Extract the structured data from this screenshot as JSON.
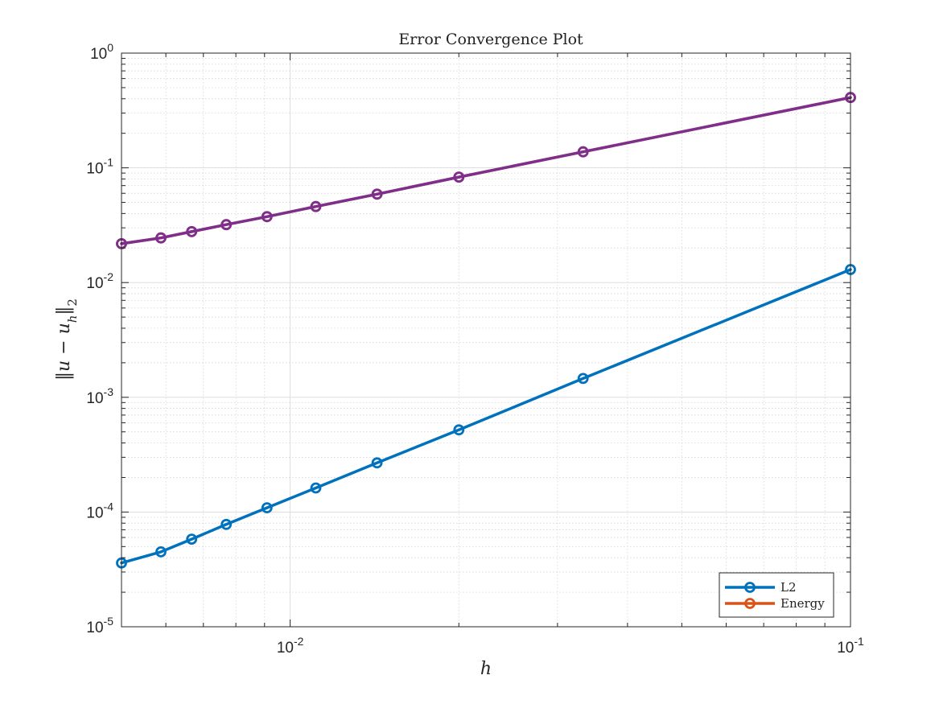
{
  "chart_data": {
    "type": "line",
    "title": "Error Convergence Plot",
    "xlabel": "h",
    "ylabel": "‖u − u_h‖_2",
    "xscale": "log",
    "yscale": "log",
    "xlim": [
      0.005,
      0.1
    ],
    "ylim": [
      1e-05,
      1
    ],
    "x_ticks": [
      {
        "value": 0.01,
        "base": "10",
        "exp": "-2"
      },
      {
        "value": 0.1,
        "base": "10",
        "exp": "-1"
      }
    ],
    "y_ticks": [
      {
        "value": 1e-05,
        "base": "10",
        "exp": "-5"
      },
      {
        "value": 0.0001,
        "base": "10",
        "exp": "-4"
      },
      {
        "value": 0.001,
        "base": "10",
        "exp": "-3"
      },
      {
        "value": 0.01,
        "base": "10",
        "exp": "-2"
      },
      {
        "value": 0.1,
        "base": "10",
        "exp": "-1"
      },
      {
        "value": 1,
        "base": "10",
        "exp": "0"
      }
    ],
    "grid": true,
    "minor_grid": true,
    "legend_position": "bottom-right",
    "series": [
      {
        "name": "L2",
        "color": "#0072BD",
        "marker": "circle",
        "x": [
          0.1,
          0.03333,
          0.02,
          0.01429,
          0.01111,
          0.00909,
          0.00769,
          0.00667,
          0.00588,
          0.005
        ],
        "y": [
          0.013,
          0.00146,
          0.00052,
          0.000268,
          0.000162,
          0.000109,
          7.8e-05,
          5.8e-05,
          4.5e-05,
          3.6e-05
        ]
      },
      {
        "name": "Energy",
        "color": "#D95319",
        "marker": "circle",
        "x": [
          0.1,
          0.03333,
          0.02,
          0.01429,
          0.01111,
          0.00909,
          0.00769,
          0.00667,
          0.00588,
          0.005
        ],
        "y": [
          0.41,
          0.138,
          0.083,
          0.059,
          0.046,
          0.0375,
          0.032,
          0.0278,
          0.0245,
          0.0218
        ]
      },
      {
        "name": "",
        "color": "#7E2F8E",
        "marker": "circle",
        "x": [
          0.1,
          0.03333,
          0.02,
          0.01429,
          0.01111,
          0.00909,
          0.00769,
          0.00667,
          0.00588,
          0.005
        ],
        "y": [
          0.41,
          0.138,
          0.083,
          0.059,
          0.046,
          0.0375,
          0.032,
          0.0278,
          0.0245,
          0.0218
        ]
      }
    ],
    "legend_entries": [
      "L2",
      "Energy"
    ]
  }
}
